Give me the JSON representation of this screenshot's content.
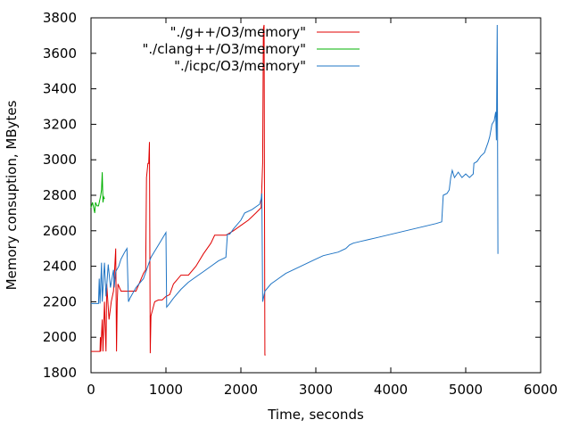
{
  "chart_data": {
    "type": "line",
    "xlabel": "Time, seconds",
    "ylabel": "Memory consuption, MBytes",
    "xlim": [
      0,
      6000
    ],
    "ylim": [
      1800,
      3800
    ],
    "xticks": [
      0,
      1000,
      2000,
      3000,
      4000,
      5000,
      6000
    ],
    "yticks": [
      1800,
      2000,
      2200,
      2400,
      2600,
      2800,
      3000,
      3200,
      3400,
      3600,
      3800
    ],
    "grid": false,
    "legend_position": "top-right",
    "series": [
      {
        "name": "\"./g++/O3/memory\"",
        "color": "#e00000",
        "points": [
          [
            0,
            1920
          ],
          [
            100,
            1920
          ],
          [
            120,
            1920
          ],
          [
            125,
            2000
          ],
          [
            130,
            1920
          ],
          [
            150,
            2100
          ],
          [
            160,
            1920
          ],
          [
            180,
            2200
          ],
          [
            200,
            1920
          ],
          [
            210,
            2300
          ],
          [
            240,
            2100
          ],
          [
            270,
            2200
          ],
          [
            300,
            2260
          ],
          [
            330,
            2500
          ],
          [
            340,
            1920
          ],
          [
            350,
            2200
          ],
          [
            360,
            2300
          ],
          [
            400,
            2260
          ],
          [
            500,
            2260
          ],
          [
            600,
            2260
          ],
          [
            700,
            2360
          ],
          [
            730,
            2380
          ],
          [
            740,
            2900
          ],
          [
            760,
            2980
          ],
          [
            770,
            2980
          ],
          [
            780,
            3100
          ],
          [
            790,
            1910
          ],
          [
            800,
            2120
          ],
          [
            850,
            2200
          ],
          [
            900,
            2210
          ],
          [
            950,
            2210
          ],
          [
            1000,
            2230
          ],
          [
            1050,
            2240
          ],
          [
            1100,
            2300
          ],
          [
            1200,
            2350
          ],
          [
            1300,
            2350
          ],
          [
            1400,
            2400
          ],
          [
            1500,
            2470
          ],
          [
            1600,
            2530
          ],
          [
            1650,
            2575
          ],
          [
            1700,
            2575
          ],
          [
            1800,
            2575
          ],
          [
            1900,
            2600
          ],
          [
            2000,
            2630
          ],
          [
            2100,
            2660
          ],
          [
            2200,
            2700
          ],
          [
            2270,
            2730
          ],
          [
            2290,
            2980
          ],
          [
            2300,
            3740
          ],
          [
            2310,
            3760
          ],
          [
            2320,
            1900
          ],
          [
            2330,
            1900
          ]
        ]
      },
      {
        "name": "\"./clang++/O3/memory\"",
        "color": "#00b000",
        "points": [
          [
            0,
            2730
          ],
          [
            20,
            2760
          ],
          [
            40,
            2720
          ],
          [
            50,
            2700
          ],
          [
            60,
            2760
          ],
          [
            80,
            2740
          ],
          [
            100,
            2740
          ],
          [
            120,
            2780
          ],
          [
            130,
            2800
          ],
          [
            140,
            2830
          ],
          [
            150,
            2930
          ],
          [
            160,
            2760
          ],
          [
            170,
            2790
          ],
          [
            180,
            2780
          ]
        ]
      },
      {
        "name": "\"./icpc/O3/memory\"",
        "color": "#1f74c4",
        "points": [
          [
            0,
            2190
          ],
          [
            60,
            2190
          ],
          [
            100,
            2190
          ],
          [
            110,
            2330
          ],
          [
            120,
            2190
          ],
          [
            140,
            2420
          ],
          [
            150,
            2200
          ],
          [
            180,
            2420
          ],
          [
            200,
            2230
          ],
          [
            230,
            2410
          ],
          [
            260,
            2280
          ],
          [
            300,
            2380
          ],
          [
            310,
            2280
          ],
          [
            330,
            2370
          ],
          [
            370,
            2400
          ],
          [
            400,
            2440
          ],
          [
            450,
            2480
          ],
          [
            480,
            2500
          ],
          [
            500,
            2200
          ],
          [
            520,
            2220
          ],
          [
            600,
            2280
          ],
          [
            700,
            2330
          ],
          [
            750,
            2390
          ],
          [
            800,
            2450
          ],
          [
            900,
            2520
          ],
          [
            1000,
            2590
          ],
          [
            1010,
            2170
          ],
          [
            1030,
            2180
          ],
          [
            1100,
            2220
          ],
          [
            1200,
            2270
          ],
          [
            1300,
            2310
          ],
          [
            1400,
            2340
          ],
          [
            1500,
            2370
          ],
          [
            1600,
            2400
          ],
          [
            1700,
            2430
          ],
          [
            1800,
            2450
          ],
          [
            1820,
            2580
          ],
          [
            1850,
            2580
          ],
          [
            1900,
            2610
          ],
          [
            2000,
            2660
          ],
          [
            2050,
            2700
          ],
          [
            2150,
            2720
          ],
          [
            2250,
            2750
          ],
          [
            2270,
            2780
          ],
          [
            2280,
            2810
          ],
          [
            2290,
            2200
          ],
          [
            2320,
            2260
          ],
          [
            2400,
            2300
          ],
          [
            2500,
            2330
          ],
          [
            2600,
            2360
          ],
          [
            2700,
            2380
          ],
          [
            2800,
            2400
          ],
          [
            2900,
            2420
          ],
          [
            3000,
            2440
          ],
          [
            3100,
            2460
          ],
          [
            3200,
            2470
          ],
          [
            3300,
            2480
          ],
          [
            3400,
            2500
          ],
          [
            3450,
            2520
          ],
          [
            3500,
            2530
          ],
          [
            3600,
            2540
          ],
          [
            3700,
            2550
          ],
          [
            3800,
            2560
          ],
          [
            3900,
            2570
          ],
          [
            4000,
            2580
          ],
          [
            4100,
            2590
          ],
          [
            4200,
            2600
          ],
          [
            4300,
            2610
          ],
          [
            4400,
            2620
          ],
          [
            4500,
            2630
          ],
          [
            4600,
            2640
          ],
          [
            4680,
            2650
          ],
          [
            4700,
            2800
          ],
          [
            4750,
            2810
          ],
          [
            4780,
            2830
          ],
          [
            4800,
            2900
          ],
          [
            4820,
            2940
          ],
          [
            4850,
            2900
          ],
          [
            4900,
            2930
          ],
          [
            4950,
            2900
          ],
          [
            5000,
            2920
          ],
          [
            5050,
            2900
          ],
          [
            5100,
            2920
          ],
          [
            5110,
            2980
          ],
          [
            5150,
            2990
          ],
          [
            5200,
            3020
          ],
          [
            5250,
            3040
          ],
          [
            5300,
            3100
          ],
          [
            5320,
            3130
          ],
          [
            5350,
            3200
          ],
          [
            5380,
            3220
          ],
          [
            5400,
            3270
          ],
          [
            5410,
            3110
          ],
          [
            5420,
            3760
          ],
          [
            5430,
            2470
          ]
        ]
      }
    ]
  }
}
